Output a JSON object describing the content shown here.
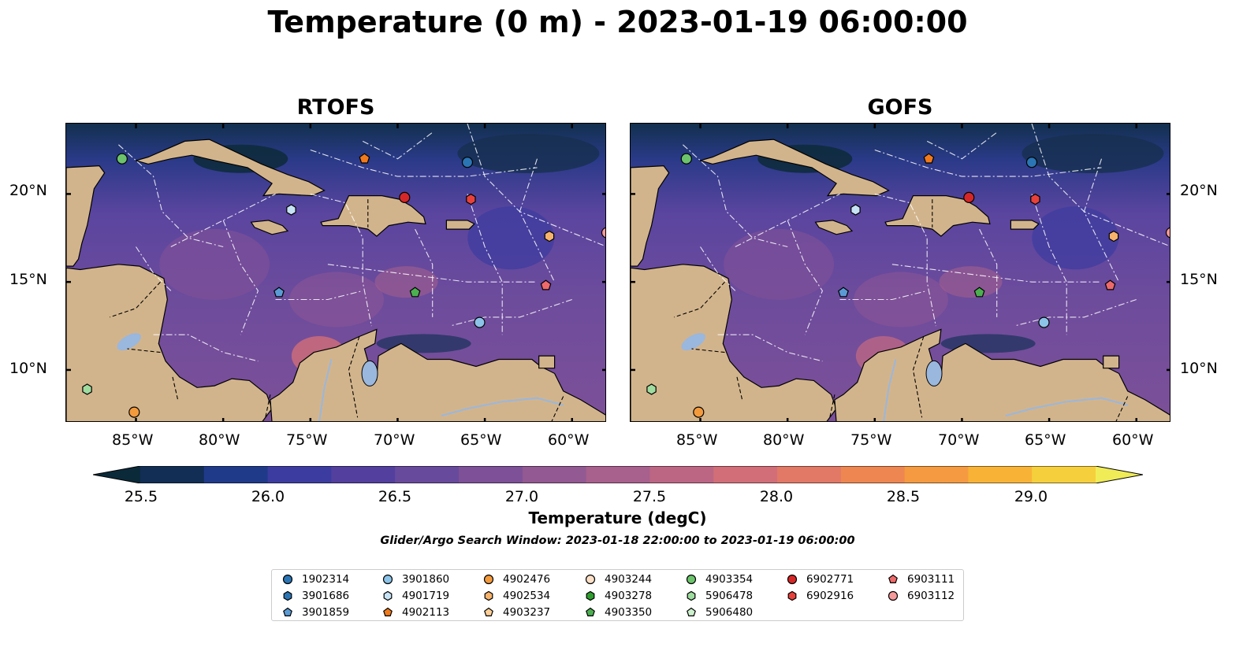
{
  "title": "Temperature (0 m) - 2023-01-19 06:00:00",
  "panels": [
    {
      "title": "RTOFS"
    },
    {
      "title": "GOFS"
    }
  ],
  "map": {
    "lon_ticks": [
      "85°W",
      "80°W",
      "75°W",
      "70°W",
      "65°W",
      "60°W"
    ],
    "lat_ticks": [
      "20°N",
      "15°N",
      "10°N"
    ],
    "extent": {
      "lon": [
        -89,
        -58
      ],
      "lat": [
        7,
        24
      ]
    },
    "colors": {
      "land": "#d2b48c",
      "lake": "#9ab7dd",
      "eez_lines": "#ffffff",
      "coast": "#000000"
    }
  },
  "colorbar": {
    "title": "Temperature (degC)",
    "ticks": [
      "25.5",
      "26.0",
      "26.5",
      "27.0",
      "27.5",
      "28.0",
      "28.5",
      "29.0"
    ],
    "colormap": "thermal",
    "range": [
      25.5,
      29.25
    ],
    "extend": "both"
  },
  "search_window": "Glider/Argo Search Window: 2023-01-18 22:00:00 to 2023-01-19 06:00:00",
  "legend": {
    "columns": [
      [
        {
          "id": "1902314",
          "marker": "circle",
          "color": "#2b75b4"
        },
        {
          "id": "3901686",
          "marker": "hexagon",
          "color": "#2b75b4"
        },
        {
          "id": "3901859",
          "marker": "pentagon",
          "color": "#5b9bd5"
        }
      ],
      [
        {
          "id": "3901860",
          "marker": "circle",
          "color": "#8cc3e8"
        },
        {
          "id": "4901719",
          "marker": "hexagon",
          "color": "#c6e2f5"
        },
        {
          "id": "4902113",
          "marker": "pentagon",
          "color": "#f07a1c"
        }
      ],
      [
        {
          "id": "4902476",
          "marker": "circle",
          "color": "#f39a3d"
        },
        {
          "id": "4902534",
          "marker": "hexagon",
          "color": "#f7b36b"
        },
        {
          "id": "4903237",
          "marker": "pentagon",
          "color": "#fbcf97"
        }
      ],
      [
        {
          "id": "4903244",
          "marker": "circle",
          "color": "#fbe0c7"
        },
        {
          "id": "4903278",
          "marker": "hexagon",
          "color": "#2f9e2f"
        },
        {
          "id": "4903350",
          "marker": "pentagon",
          "color": "#4caf50"
        }
      ],
      [
        {
          "id": "4903354",
          "marker": "circle",
          "color": "#6cc36c"
        },
        {
          "id": "5906478",
          "marker": "hexagon",
          "color": "#9fdc9f"
        },
        {
          "id": "5906480",
          "marker": "pentagon",
          "color": "#cdf0cd"
        }
      ],
      [
        {
          "id": "6902771",
          "marker": "circle",
          "color": "#d62728"
        },
        {
          "id": "6902916",
          "marker": "hexagon",
          "color": "#e8413b"
        }
      ],
      [
        {
          "id": "6903111",
          "marker": "pentagon",
          "color": "#ee6a6a"
        },
        {
          "id": "6903112",
          "marker": "circle",
          "color": "#f59a9a"
        }
      ]
    ]
  },
  "floats_on_map": [
    {
      "id": "4903354",
      "lon": -85.8,
      "lat": 22.0
    },
    {
      "id": "4902113",
      "lon": -71.9,
      "lat": 22.0
    },
    {
      "id": "1902314",
      "lon": -66.0,
      "lat": 21.8
    },
    {
      "id": "6902771",
      "lon": -69.6,
      "lat": 19.8
    },
    {
      "id": "6902916",
      "lon": -65.8,
      "lat": 19.7
    },
    {
      "id": "4901719",
      "lon": -76.1,
      "lat": 19.1
    },
    {
      "id": "4902534",
      "lon": -61.3,
      "lat": 17.6
    },
    {
      "id": "6903112",
      "lon": -58.0,
      "lat": 17.8
    },
    {
      "id": "6903111",
      "lon": -61.5,
      "lat": 14.8
    },
    {
      "id": "3901859",
      "lon": -76.8,
      "lat": 14.4
    },
    {
      "id": "4903350",
      "lon": -69.0,
      "lat": 14.4
    },
    {
      "id": "3901860",
      "lon": -65.3,
      "lat": 12.7
    },
    {
      "id": "5906478",
      "lon": -87.8,
      "lat": 8.9
    },
    {
      "id": "4902476",
      "lon": -85.1,
      "lat": 7.6
    }
  ]
}
